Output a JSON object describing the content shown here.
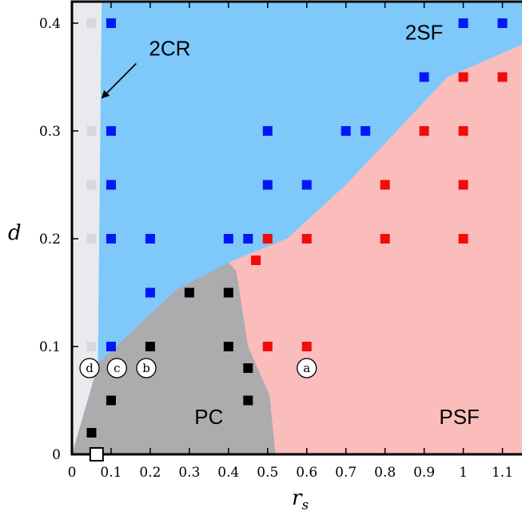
{
  "chart_data": {
    "type": "scatter",
    "xlabel": "r",
    "xlabel_sub": "s",
    "ylabel": "d",
    "xlim": [
      0,
      1.15
    ],
    "ylim": [
      0,
      0.42
    ],
    "x_ticks": [
      0,
      0.1,
      0.2,
      0.3,
      0.4,
      0.5,
      0.6,
      0.7,
      0.8,
      0.9,
      1,
      1.1
    ],
    "y_ticks": [
      0,
      0.1,
      0.2,
      0.3,
      0.4
    ],
    "x_tick_labels": [
      "0",
      "0.1",
      "0.2",
      "0.3",
      "0.4",
      "0.5",
      "0.6",
      "0.7",
      "0.8",
      "0.9",
      "1",
      "1.1"
    ],
    "y_tick_labels": [
      "0",
      "0.1",
      "0.2",
      "0.3",
      "0.4"
    ],
    "regions": [
      {
        "name": "2CR",
        "color": "#e8eaee"
      },
      {
        "name": "2SF",
        "color": "#7ec8fa"
      },
      {
        "name": "PC",
        "color": "#acacae"
      },
      {
        "name": "PSF",
        "color": "#fbbcbc"
      }
    ],
    "region_boundaries": {
      "cr_sf": [
        [
          0.064,
          0
        ],
        [
          0.064,
          0.42
        ],
        [
          0.076,
          0.42
        ],
        [
          0.066,
          0.2
        ],
        [
          0.064,
          0
        ]
      ],
      "pc_polygon": [
        [
          0,
          0
        ],
        [
          0.52,
          0
        ],
        [
          0.505,
          0.055
        ],
        [
          0.45,
          0.1
        ],
        [
          0.42,
          0.17
        ],
        [
          0.4,
          0.178
        ],
        [
          0.265,
          0.152
        ],
        [
          0.068,
          0.085
        ],
        [
          0,
          0.0
        ]
      ],
      "sf_psf": [
        [
          0.4,
          0.178
        ],
        [
          0.55,
          0.2
        ],
        [
          0.7,
          0.25
        ],
        [
          0.96,
          0.35
        ],
        [
          1.15,
          0.38
        ]
      ]
    },
    "series": [
      {
        "name": "2SF",
        "color": "#0018f5",
        "points": [
          [
            0.1,
            0.4
          ],
          [
            1.0,
            0.4
          ],
          [
            1.1,
            0.4
          ],
          [
            0.9,
            0.35
          ],
          [
            0.1,
            0.3
          ],
          [
            0.5,
            0.3
          ],
          [
            0.7,
            0.3
          ],
          [
            0.75,
            0.3
          ],
          [
            0.1,
            0.25
          ],
          [
            0.5,
            0.25
          ],
          [
            0.6,
            0.25
          ],
          [
            0.1,
            0.2
          ],
          [
            0.2,
            0.2
          ],
          [
            0.4,
            0.2
          ],
          [
            0.45,
            0.2
          ],
          [
            0.2,
            0.15
          ],
          [
            0.1,
            0.1
          ]
        ]
      },
      {
        "name": "PSF",
        "color": "#f50a0a",
        "points": [
          [
            1.0,
            0.35
          ],
          [
            1.1,
            0.35
          ],
          [
            0.9,
            0.3
          ],
          [
            1.0,
            0.3
          ],
          [
            0.8,
            0.25
          ],
          [
            1.0,
            0.25
          ],
          [
            0.5,
            0.2
          ],
          [
            0.6,
            0.2
          ],
          [
            0.8,
            0.2
          ],
          [
            1.0,
            0.2
          ],
          [
            0.47,
            0.18
          ],
          [
            0.5,
            0.1
          ],
          [
            0.6,
            0.1
          ]
        ]
      },
      {
        "name": "PC",
        "color": "#000000",
        "points": [
          [
            0.3,
            0.15
          ],
          [
            0.4,
            0.15
          ],
          [
            0.2,
            0.1
          ],
          [
            0.4,
            0.1
          ],
          [
            0.45,
            0.08
          ],
          [
            0.1,
            0.05
          ],
          [
            0.45,
            0.05
          ],
          [
            0.05,
            0.02
          ]
        ]
      },
      {
        "name": "2CR",
        "color": "#d6d8dc",
        "points": [
          [
            0.05,
            0.4
          ],
          [
            0.05,
            0.3
          ],
          [
            0.05,
            0.25
          ],
          [
            0.05,
            0.2
          ],
          [
            0.05,
            0.1
          ]
        ]
      }
    ],
    "open_marker": {
      "x": 0.063,
      "y": 0
    },
    "circle_markers": [
      {
        "label": "a",
        "x": 0.6,
        "y": 0.08
      },
      {
        "label": "b",
        "x": 0.19,
        "y": 0.08
      },
      {
        "label": "c",
        "x": 0.115,
        "y": 0.08
      },
      {
        "label": "d",
        "x": 0.045,
        "y": 0.08
      }
    ],
    "region_labels": [
      {
        "text": "2SF",
        "x": 0.9,
        "y": 0.385
      },
      {
        "text": "2CR",
        "x": 0.25,
        "y": 0.37
      },
      {
        "text": "PC",
        "x": 0.35,
        "y": 0.028
      },
      {
        "text": "PSF",
        "x": 0.99,
        "y": 0.028
      }
    ],
    "annotation": {
      "text": "2CR",
      "arrow_to": [
        0.075,
        0.33
      ]
    }
  }
}
